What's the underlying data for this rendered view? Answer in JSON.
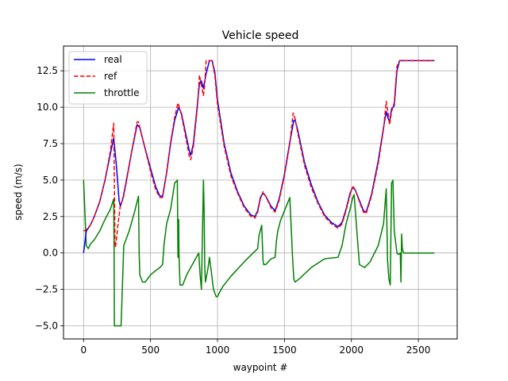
{
  "chart_data": {
    "type": "line",
    "title": "Vehicle speed",
    "xlabel": "waypoint #",
    "ylabel": "speed (m/s)",
    "xlim": [
      -150,
      2790
    ],
    "ylim": [
      -5.9,
      14.2
    ],
    "xticks": [
      0,
      500,
      1000,
      1500,
      2000,
      2500
    ],
    "xtick_labels": [
      "0",
      "500",
      "1000",
      "1500",
      "2000",
      "2500"
    ],
    "yticks": [
      -5.0,
      -2.5,
      0.0,
      2.5,
      5.0,
      7.5,
      10.0,
      12.5
    ],
    "ytick_labels": [
      "−5.0",
      "−2.5",
      "0.0",
      "2.5",
      "5.0",
      "7.5",
      "10.0",
      "12.5"
    ],
    "grid": true,
    "legend": "top-left",
    "series": [
      {
        "name": "real",
        "color": "#0000ff",
        "style": "solid",
        "x": [
          0,
          20,
          50,
          80,
          120,
          160,
          200,
          225,
          245,
          265,
          275,
          295,
          320,
          360,
          400,
          420,
          450,
          500,
          540,
          570,
          590,
          620,
          650,
          680,
          710,
          730,
          760,
          790,
          800,
          820,
          850,
          865,
          880,
          895,
          905,
          915,
          940,
          960,
          980,
          1000,
          1050,
          1100,
          1150,
          1200,
          1250,
          1280,
          1300,
          1320,
          1340,
          1360,
          1400,
          1430,
          1460,
          1500,
          1540,
          1570,
          1580,
          1600,
          1650,
          1700,
          1750,
          1800,
          1850,
          1900,
          1930,
          1960,
          1990,
          2010,
          2030,
          2060,
          2090,
          2110,
          2150,
          2200,
          2240,
          2260,
          2275,
          2285,
          2300,
          2320,
          2340,
          2360,
          2400,
          2500,
          2620
        ],
        "y": [
          0.0,
          1.5,
          1.9,
          2.5,
          3.5,
          5.0,
          6.8,
          7.9,
          6.0,
          3.6,
          3.2,
          3.8,
          5.0,
          7.0,
          8.8,
          8.6,
          7.5,
          5.8,
          4.5,
          3.9,
          3.9,
          5.5,
          7.5,
          9.1,
          10.0,
          9.6,
          8.3,
          7.0,
          6.7,
          7.5,
          10.2,
          11.6,
          11.8,
          11.3,
          11.8,
          12.3,
          13.2,
          13.2,
          12.4,
          10.5,
          7.5,
          5.5,
          4.2,
          3.2,
          2.6,
          2.5,
          2.9,
          3.8,
          4.1,
          3.9,
          3.2,
          2.9,
          3.7,
          5.4,
          7.6,
          9.1,
          9.1,
          8.4,
          6.2,
          4.7,
          3.5,
          2.6,
          2.1,
          1.8,
          2.1,
          3.0,
          4.1,
          4.5,
          4.3,
          3.6,
          2.9,
          2.8,
          4.0,
          6.3,
          8.6,
          9.7,
          9.2,
          9.0,
          9.9,
          10.1,
          12.5,
          13.2,
          13.2,
          13.2,
          13.2
        ]
      },
      {
        "name": "ref",
        "color": "#ff0000",
        "style": "dashed",
        "x": [
          0,
          20,
          50,
          80,
          120,
          160,
          200,
          225,
          235,
          240,
          255,
          275,
          295,
          320,
          360,
          400,
          410,
          450,
          500,
          540,
          570,
          590,
          620,
          650,
          680,
          705,
          730,
          760,
          790,
          800,
          820,
          850,
          865,
          880,
          895,
          905,
          915,
          940,
          960,
          980,
          1000,
          1050,
          1100,
          1150,
          1200,
          1250,
          1280,
          1300,
          1320,
          1340,
          1360,
          1400,
          1430,
          1460,
          1500,
          1540,
          1565,
          1580,
          1600,
          1650,
          1700,
          1750,
          1800,
          1850,
          1900,
          1930,
          1960,
          1990,
          2010,
          2030,
          2060,
          2090,
          2110,
          2150,
          2200,
          2240,
          2260,
          2275,
          2285,
          2300,
          2320,
          2340,
          2360,
          2400,
          2500,
          2620
        ],
        "y": [
          1.5,
          1.6,
          1.9,
          2.5,
          3.5,
          5.0,
          7.0,
          8.9,
          0.4,
          0.5,
          1.8,
          3.3,
          3.7,
          4.9,
          7.0,
          9.0,
          9.0,
          7.5,
          5.6,
          4.3,
          3.8,
          3.8,
          5.5,
          7.6,
          9.3,
          10.3,
          9.5,
          8.1,
          6.6,
          6.4,
          7.3,
          10.0,
          12.2,
          11.5,
          10.8,
          11.6,
          13.2,
          13.2,
          13.2,
          12.2,
          10.2,
          7.3,
          5.3,
          4.1,
          3.1,
          2.5,
          2.4,
          2.8,
          3.7,
          4.2,
          3.9,
          3.1,
          2.8,
          3.6,
          5.3,
          7.5,
          9.6,
          9.2,
          8.2,
          6.0,
          4.5,
          3.4,
          2.5,
          2.0,
          1.7,
          2.0,
          2.9,
          4.0,
          4.6,
          4.3,
          3.5,
          2.8,
          2.7,
          3.9,
          6.1,
          8.5,
          10.4,
          9.5,
          8.8,
          9.7,
          10.3,
          12.8,
          13.2,
          13.2,
          13.2,
          13.2
        ]
      },
      {
        "name": "throttle",
        "color": "#008000",
        "style": "solid",
        "x": [
          0,
          20,
          35,
          50,
          80,
          120,
          160,
          200,
          225,
          228,
          230,
          260,
          280,
          300,
          340,
          380,
          410,
          415,
          420,
          440,
          460,
          500,
          540,
          570,
          590,
          600,
          620,
          650,
          680,
          700,
          705,
          710,
          712,
          720,
          740,
          770,
          800,
          830,
          860,
          870,
          880,
          895,
          900,
          905,
          910,
          920,
          930,
          940,
          950,
          970,
          990,
          1000,
          1010,
          1040,
          1100,
          1200,
          1300,
          1310,
          1330,
          1340,
          1345,
          1360,
          1400,
          1430,
          1440,
          1450,
          1470,
          1500,
          1540,
          1560,
          1565,
          1570,
          1580,
          1620,
          1700,
          1800,
          1900,
          1930,
          1960,
          1990,
          2010,
          2020,
          2060,
          2100,
          2140,
          2200,
          2240,
          2260,
          2270,
          2280,
          2290,
          2300,
          2310,
          2320,
          2340,
          2350,
          2365,
          2370,
          2375,
          2380,
          2390,
          2400,
          2450,
          2500,
          2620
        ],
        "y": [
          5.0,
          0.5,
          0.3,
          0.6,
          0.9,
          1.5,
          2.3,
          3.0,
          3.7,
          0.0,
          -5.0,
          -5.0,
          -5.0,
          0.5,
          1.5,
          2.8,
          3.9,
          0.0,
          -1.5,
          -2.0,
          -2.0,
          -1.5,
          -1.2,
          -1.0,
          -0.8,
          0.5,
          2.0,
          3.0,
          4.8,
          5.0,
          -0.3,
          2.3,
          0.0,
          -2.2,
          -2.2,
          -1.5,
          -1.0,
          -0.5,
          0.0,
          -1.5,
          -2.5,
          5.0,
          3.0,
          -1.0,
          -2.0,
          -1.5,
          -1.0,
          -0.3,
          -1.0,
          -2.5,
          -3.0,
          -3.0,
          -2.8,
          -2.3,
          -1.6,
          -0.6,
          0.3,
          1.2,
          1.9,
          -0.5,
          -0.8,
          -0.8,
          -0.4,
          -0.3,
          0.8,
          1.5,
          2.2,
          2.9,
          3.8,
          -0.2,
          -1.0,
          -1.8,
          -2.0,
          -1.7,
          -1.0,
          -0.4,
          -0.3,
          0.5,
          2.0,
          3.0,
          3.8,
          4.0,
          -0.8,
          -1.0,
          -0.6,
          0.5,
          2.0,
          4.4,
          -0.5,
          -1.8,
          -2.2,
          4.8,
          5.0,
          1.5,
          0.0,
          -0.1,
          0.0,
          -2.0,
          1.3,
          0.3,
          0.0,
          0.0,
          0.0,
          0.0,
          0.0
        ]
      }
    ]
  }
}
